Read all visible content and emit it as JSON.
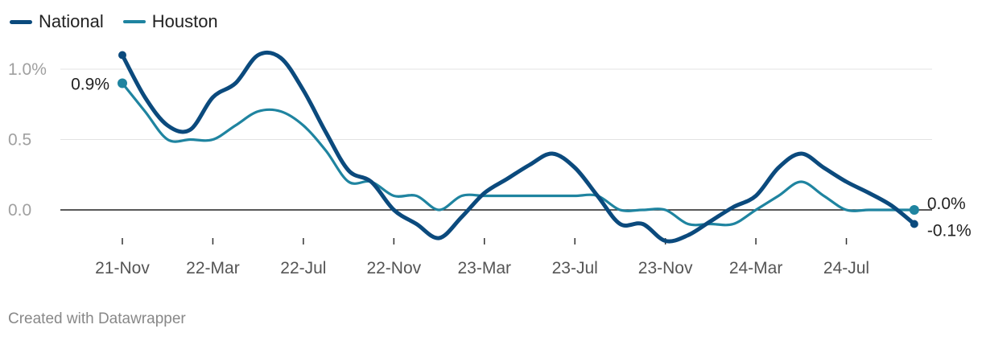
{
  "chart_data": {
    "type": "line",
    "title": "",
    "xlabel": "",
    "ylabel": "",
    "ylim": [
      -0.2,
      1.2
    ],
    "y_ticks": [
      {
        "value": 1.0,
        "label": "1.0%"
      },
      {
        "value": 0.5,
        "label": "0.5"
      },
      {
        "value": 0.0,
        "label": "0.0"
      }
    ],
    "x_ticks": [
      "21-Nov",
      "22-Mar",
      "22-Jul",
      "22-Nov",
      "23-Mar",
      "23-Jul",
      "23-Nov",
      "24-Mar",
      "24-Jul"
    ],
    "x_tick_index": [
      0,
      4,
      8,
      12,
      16,
      20,
      24,
      28,
      32
    ],
    "x_count": 36,
    "grid": true,
    "legend_position": "top-left",
    "series": [
      {
        "name": "National",
        "color": "#0b4a7d",
        "values": [
          1.1,
          0.8,
          0.6,
          0.57,
          0.8,
          0.9,
          1.1,
          1.08,
          0.85,
          0.55,
          0.28,
          0.2,
          0.0,
          -0.1,
          -0.2,
          -0.05,
          0.12,
          0.22,
          0.32,
          0.4,
          0.3,
          0.1,
          -0.1,
          -0.1,
          -0.22,
          -0.18,
          -0.08,
          0.02,
          0.1,
          0.3,
          0.4,
          0.3,
          0.2,
          0.12,
          0.03,
          -0.1
        ],
        "start_label": "",
        "end_label": "-0.1%"
      },
      {
        "name": "Houston",
        "color": "#1f84a0",
        "values": [
          0.9,
          0.7,
          0.5,
          0.5,
          0.5,
          0.6,
          0.7,
          0.7,
          0.6,
          0.42,
          0.2,
          0.2,
          0.1,
          0.1,
          0.0,
          0.1,
          0.1,
          0.1,
          0.1,
          0.1,
          0.1,
          0.1,
          0.0,
          0.0,
          0.0,
          -0.1,
          -0.1,
          -0.1,
          0.0,
          0.1,
          0.2,
          0.1,
          0.0,
          0.0,
          0.0,
          0.0
        ],
        "start_label": "0.9%",
        "end_label": "0.0%"
      }
    ]
  },
  "credit": "Created with Datawrapper"
}
